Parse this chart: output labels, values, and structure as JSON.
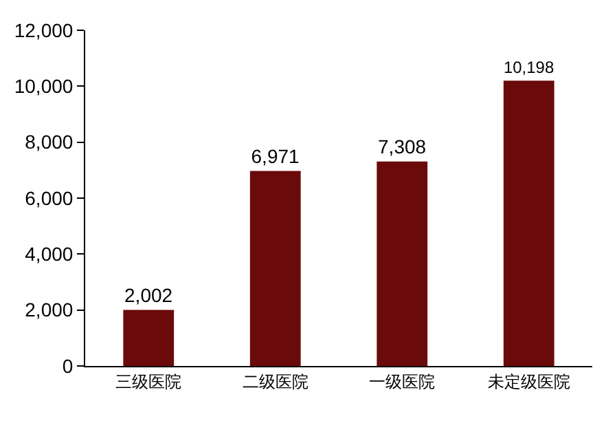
{
  "chart_data": {
    "type": "bar",
    "categories": [
      "三级医院",
      "二级医院",
      "一级医院",
      "未定级医院"
    ],
    "values": [
      2002,
      6971,
      7308,
      10198
    ],
    "color": "#6b0a0a",
    "ylim": [
      0,
      12000
    ],
    "yticks": [
      {
        "value": 0,
        "label": "0"
      },
      {
        "value": 2000,
        "label": "2,000"
      },
      {
        "value": 4000,
        "label": "4,000"
      },
      {
        "value": 6000,
        "label": "6,000"
      },
      {
        "value": 8000,
        "label": "8,000"
      },
      {
        "value": 10000,
        "label": "10,000"
      },
      {
        "value": 12000,
        "label": "12,000"
      }
    ],
    "value_labels": [
      "2,002",
      "6,971",
      "7,308",
      "10,198"
    ],
    "grid": false,
    "legend": false
  }
}
